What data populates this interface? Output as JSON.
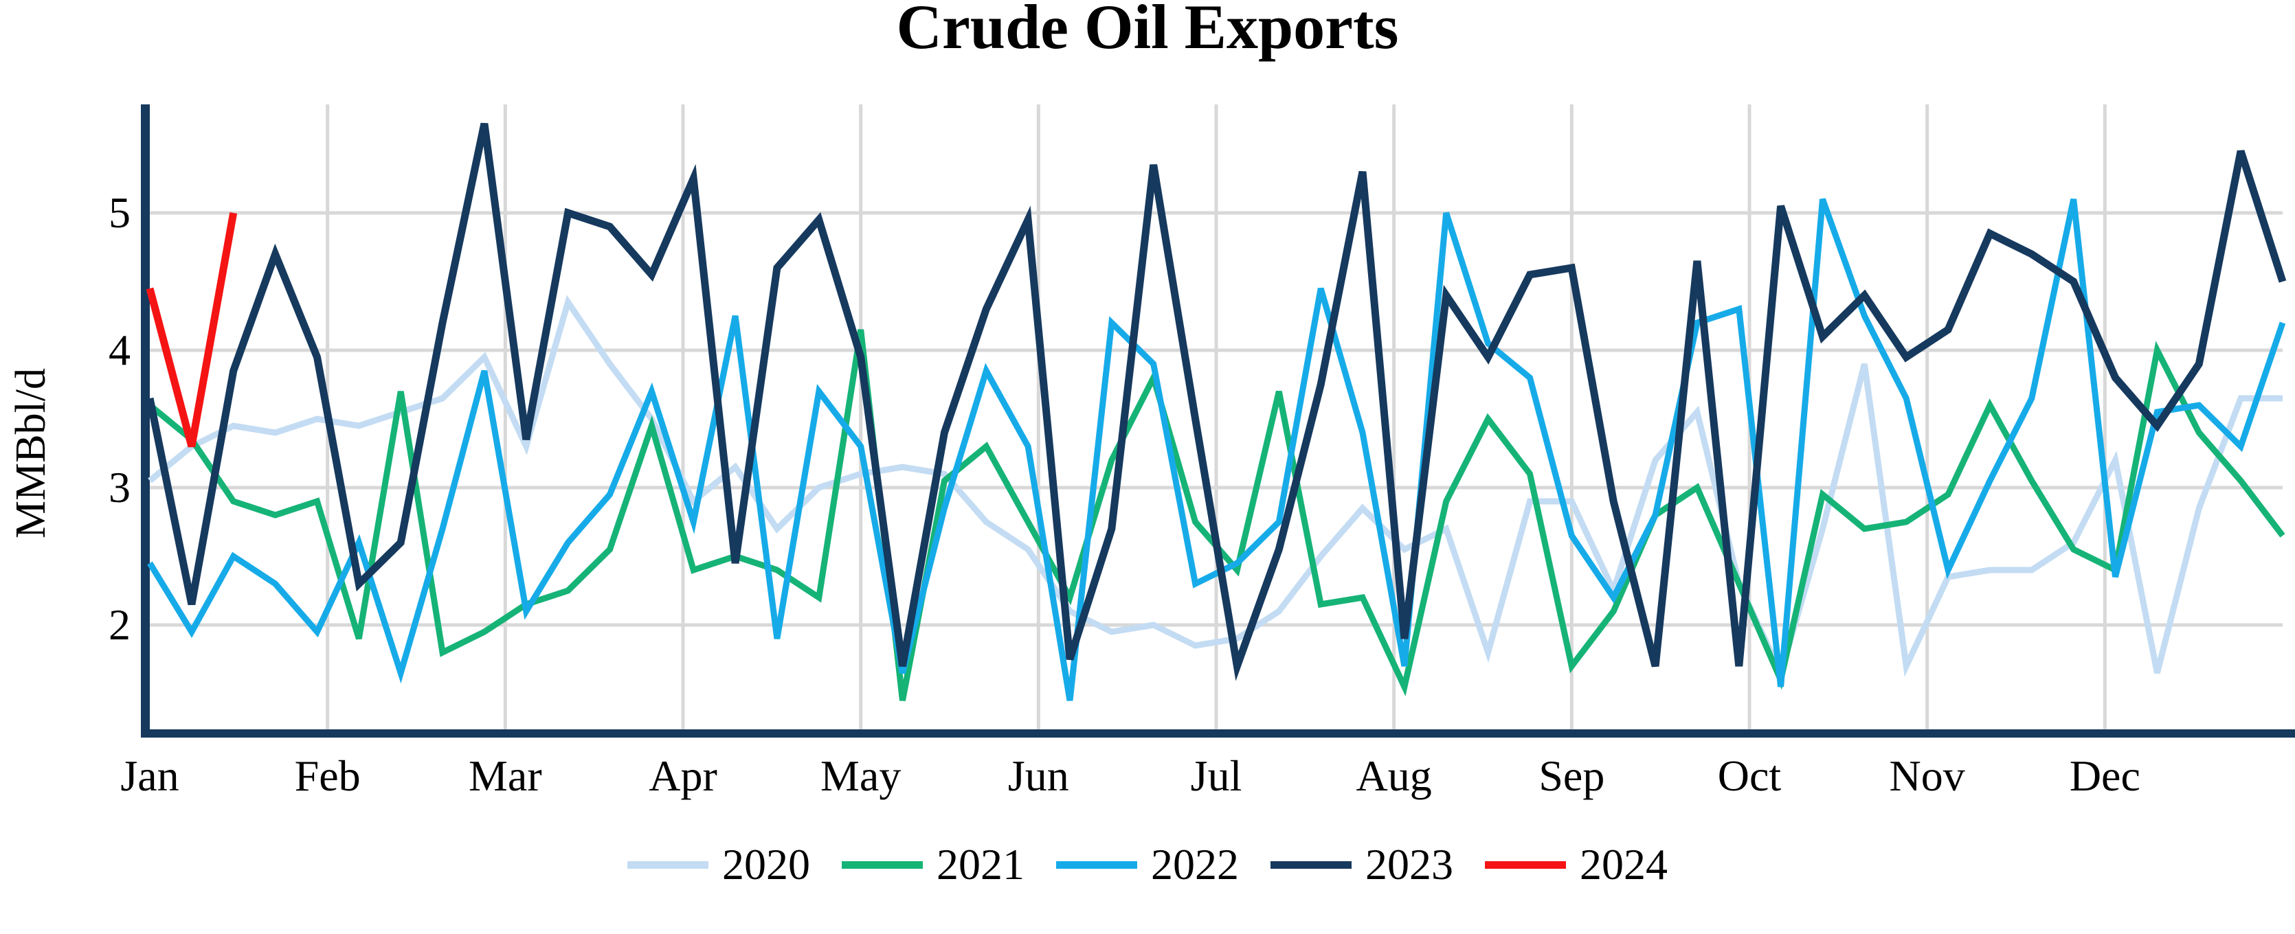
{
  "title": "Crude Oil Exports",
  "y_axis": {
    "label": "MMBbl/d",
    "ticks": [
      5,
      4,
      3,
      2
    ]
  },
  "x_axis": {
    "months": [
      "Jan",
      "Feb",
      "Mar",
      "Apr",
      "May",
      "Jun",
      "Jul",
      "Aug",
      "Sep",
      "Oct",
      "Nov",
      "Dec"
    ]
  },
  "legend": {
    "entries": [
      "2020",
      "2021",
      "2022",
      "2023",
      "2024"
    ]
  },
  "colors": {
    "series_2020": "#c3dcf3",
    "series_2021": "#16b377",
    "series_2022": "#16abe8",
    "series_2023": "#16395e",
    "series_2024": "#f51414",
    "gridline": "#d8d8d8",
    "axis": "#16395e",
    "text": "#000000"
  },
  "chart_data": {
    "type": "line",
    "title": "Crude Oil Exports",
    "xlabel": "",
    "ylabel": "MMBbl/d",
    "x_unit": "weekly observations, Jan-Dec",
    "ylim": [
      1.24,
      5.79
    ],
    "yticks": [
      2,
      3,
      4,
      5
    ],
    "grid": true,
    "legend_position": "bottom-center",
    "categories_months": [
      "Jan",
      "Feb",
      "Mar",
      "Apr",
      "May",
      "Jun",
      "Jul",
      "Aug",
      "Sep",
      "Oct",
      "Nov",
      "Dec"
    ],
    "points_per_series": 52,
    "series": [
      {
        "name": "2020",
        "color": "#c3dcf3",
        "width": 9,
        "values": [
          3.05,
          3.3,
          3.45,
          3.4,
          3.5,
          3.45,
          3.55,
          3.65,
          3.95,
          3.3,
          4.35,
          3.9,
          3.5,
          2.9,
          3.15,
          2.7,
          3.0,
          3.1,
          3.15,
          3.1,
          2.75,
          2.55,
          2.1,
          1.95,
          2.0,
          1.85,
          1.9,
          2.1,
          2.5,
          2.85,
          2.55,
          2.7,
          1.8,
          2.9,
          2.9,
          2.25,
          3.2,
          3.55,
          2.3,
          1.65,
          2.7,
          3.9,
          1.7,
          2.35,
          2.4,
          2.4,
          2.6,
          3.2,
          1.65,
          2.85,
          3.65,
          3.65
        ]
      },
      {
        "name": "2021",
        "color": "#16b377",
        "width": 9,
        "values": [
          3.6,
          3.35,
          2.9,
          2.8,
          2.9,
          1.9,
          3.7,
          1.8,
          1.95,
          2.15,
          2.25,
          2.55,
          3.45,
          2.4,
          2.5,
          2.4,
          2.2,
          4.15,
          1.45,
          3.05,
          3.3,
          2.75,
          2.2,
          3.2,
          3.8,
          2.75,
          2.4,
          3.7,
          2.15,
          2.2,
          1.55,
          2.9,
          3.5,
          3.1,
          1.7,
          2.1,
          2.8,
          3.0,
          2.3,
          1.6,
          2.95,
          2.7,
          2.75,
          2.95,
          3.6,
          3.05,
          2.55,
          2.4,
          4.0,
          3.4,
          3.05,
          2.65
        ]
      },
      {
        "name": "2022",
        "color": "#16abe8",
        "width": 9,
        "values": [
          2.45,
          1.95,
          2.5,
          2.3,
          1.95,
          2.6,
          1.65,
          2.7,
          3.85,
          2.1,
          2.6,
          2.95,
          3.7,
          2.75,
          4.25,
          1.9,
          3.7,
          3.3,
          1.65,
          2.85,
          3.85,
          3.3,
          1.45,
          4.2,
          3.9,
          2.3,
          2.45,
          2.75,
          4.45,
          3.4,
          1.7,
          5.0,
          4.05,
          3.8,
          2.65,
          2.2,
          2.8,
          4.2,
          4.3,
          1.55,
          5.1,
          4.25,
          3.65,
          2.4,
          3.05,
          3.65,
          5.1,
          2.35,
          3.55,
          3.6,
          3.3,
          4.2
        ]
      },
      {
        "name": "2023",
        "color": "#16395e",
        "width": 11,
        "values": [
          3.65,
          2.15,
          3.85,
          4.7,
          3.95,
          2.3,
          2.6,
          4.2,
          5.65,
          3.35,
          5.0,
          4.9,
          4.55,
          5.25,
          2.45,
          4.6,
          4.95,
          3.95,
          1.7,
          3.4,
          4.3,
          4.95,
          1.75,
          2.7,
          5.35,
          3.5,
          1.7,
          2.55,
          3.75,
          5.3,
          1.9,
          4.4,
          3.95,
          4.55,
          4.6,
          2.9,
          1.7,
          4.65,
          1.7,
          5.05,
          4.1,
          4.4,
          3.95,
          4.15,
          4.85,
          4.7,
          4.5,
          3.8,
          3.45,
          3.9,
          5.45,
          4.5
        ]
      },
      {
        "name": "2024",
        "color": "#f51414",
        "width": 11,
        "values": [
          4.45,
          3.3,
          5.0
        ]
      }
    ]
  },
  "layout_note_visible_text_only": true
}
